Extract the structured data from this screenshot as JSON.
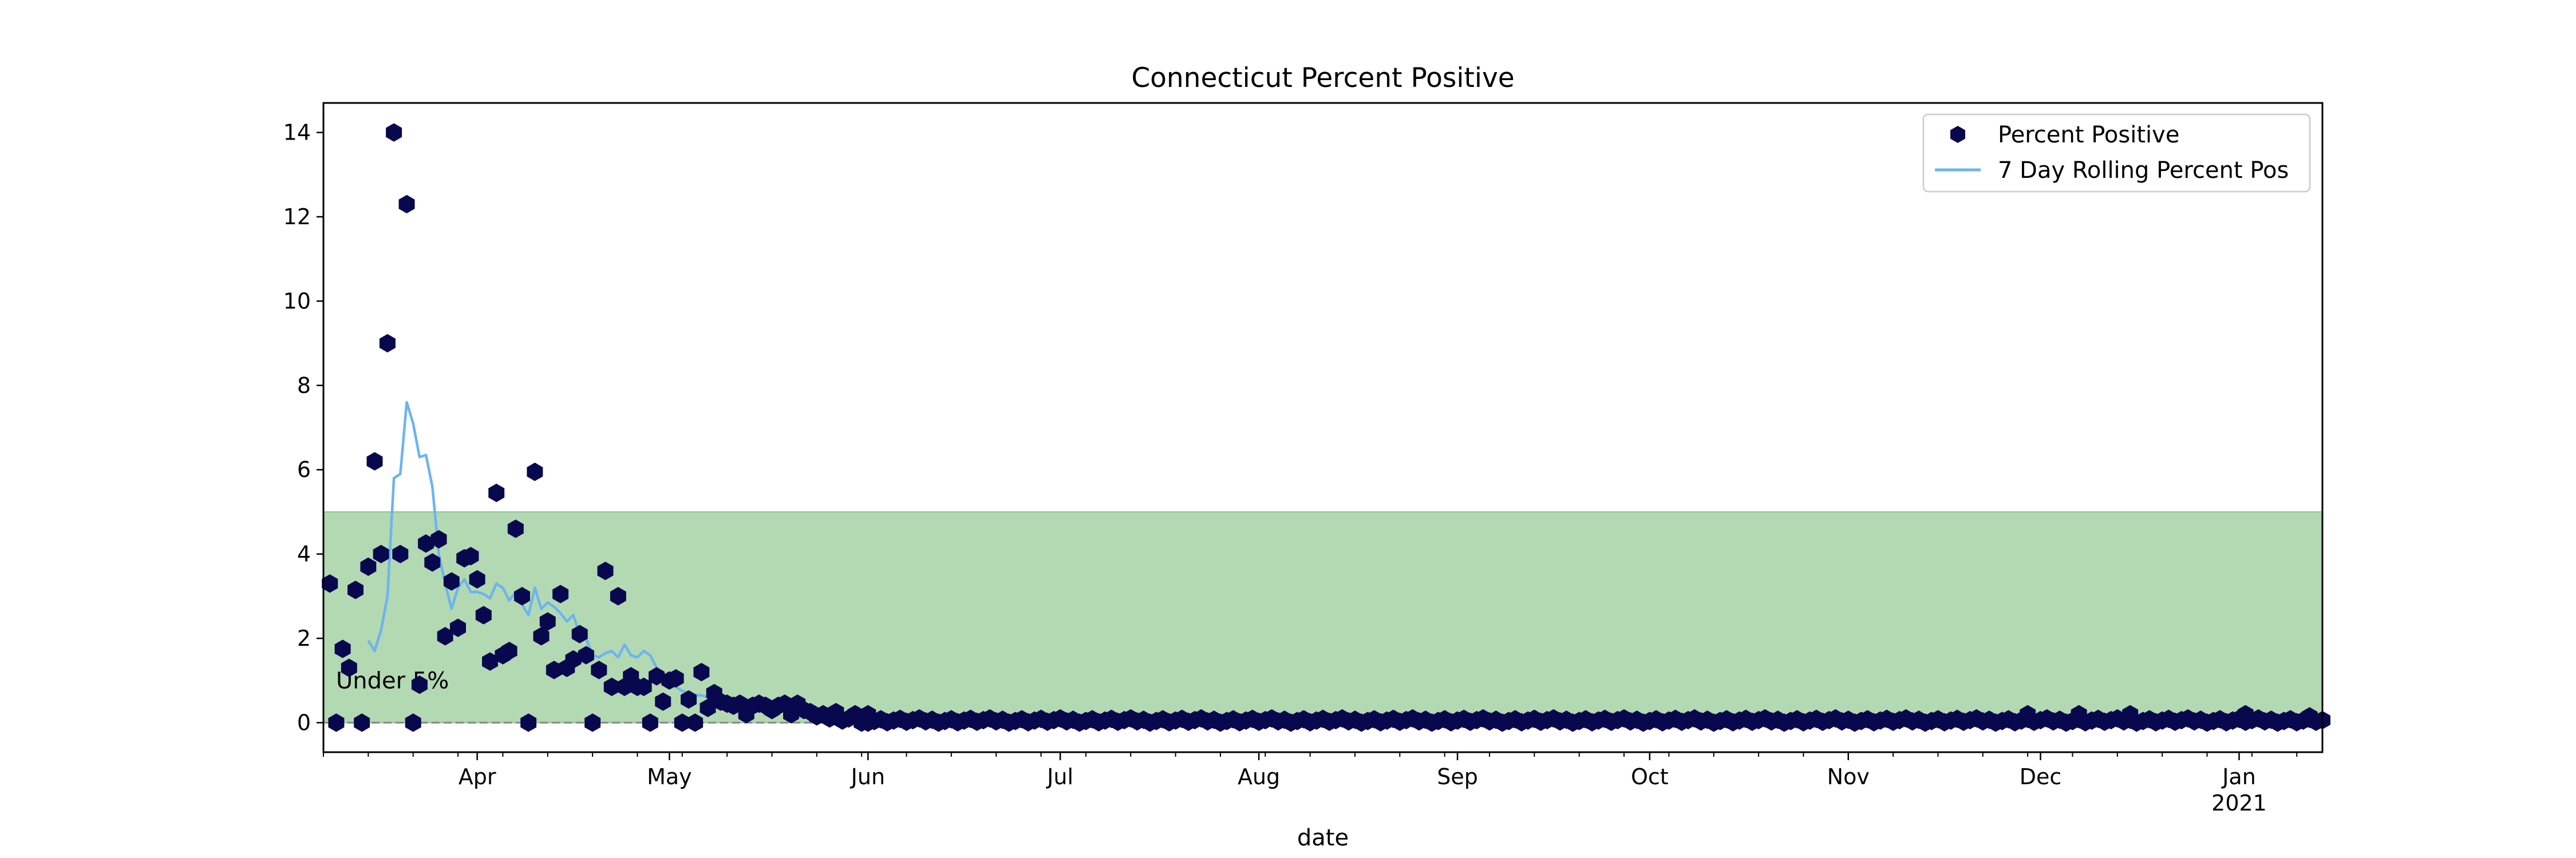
{
  "chart_data": {
    "type": "scatter",
    "title": "Connecticut Percent Positive",
    "xlabel": "date",
    "ylabel": "",
    "x_range": [
      "2020-03-08",
      "2021-01-14"
    ],
    "ylim": [
      -0.7,
      14.7
    ],
    "y_ticks": [
      0,
      2,
      4,
      6,
      8,
      10,
      12,
      14
    ],
    "x_ticks": [
      {
        "date": "2020-04-01",
        "label": "Apr"
      },
      {
        "date": "2020-05-01",
        "label": "May"
      },
      {
        "date": "2020-06-01",
        "label": "Jun"
      },
      {
        "date": "2020-07-01",
        "label": "Jul"
      },
      {
        "date": "2020-08-01",
        "label": "Aug"
      },
      {
        "date": "2020-09-01",
        "label": "Sep"
      },
      {
        "date": "2020-10-01",
        "label": "Oct"
      },
      {
        "date": "2020-11-01",
        "label": "Nov"
      },
      {
        "date": "2020-12-01",
        "label": "Dec"
      },
      {
        "date": "2021-01-01",
        "label": "Jan",
        "sublabel": "2021"
      }
    ],
    "legend_position": "top-right",
    "grid": false,
    "threshold_band": {
      "y_from": 0,
      "y_to": 5,
      "label": "Under 5%",
      "color": "#b2d9b2",
      "border": "#8fc48f"
    },
    "baseline": {
      "y": 0,
      "style": "dashed",
      "color": "#888888"
    },
    "series": [
      {
        "name": "Percent Positive",
        "kind": "markers",
        "color": "#08084f",
        "points": [
          [
            "2020-03-09",
            3.3
          ],
          [
            "2020-03-10",
            0.0
          ],
          [
            "2020-03-11",
            1.75
          ],
          [
            "2020-03-12",
            1.3
          ],
          [
            "2020-03-13",
            3.15
          ],
          [
            "2020-03-14",
            0.0
          ],
          [
            "2020-03-15",
            3.7
          ],
          [
            "2020-03-16",
            6.2
          ],
          [
            "2020-03-17",
            4.0
          ],
          [
            "2020-03-18",
            9.0
          ],
          [
            "2020-03-19",
            14.0
          ],
          [
            "2020-03-20",
            4.0
          ],
          [
            "2020-03-21",
            12.3
          ],
          [
            "2020-03-22",
            0.0
          ],
          [
            "2020-03-23",
            0.9
          ],
          [
            "2020-03-24",
            4.25
          ],
          [
            "2020-03-25",
            3.8
          ],
          [
            "2020-03-26",
            4.35
          ],
          [
            "2020-03-27",
            2.05
          ],
          [
            "2020-03-28",
            3.35
          ],
          [
            "2020-03-29",
            2.25
          ],
          [
            "2020-03-30",
            3.9
          ],
          [
            "2020-03-31",
            3.95
          ],
          [
            "2020-04-01",
            3.4
          ],
          [
            "2020-04-02",
            2.55
          ],
          [
            "2020-04-03",
            1.45
          ],
          [
            "2020-04-04",
            5.45
          ],
          [
            "2020-04-05",
            1.6
          ],
          [
            "2020-04-06",
            1.7
          ],
          [
            "2020-04-07",
            4.6
          ],
          [
            "2020-04-08",
            3.0
          ],
          [
            "2020-04-09",
            0.0
          ],
          [
            "2020-04-10",
            5.95
          ],
          [
            "2020-04-11",
            2.05
          ],
          [
            "2020-04-12",
            2.4
          ],
          [
            "2020-04-13",
            1.25
          ],
          [
            "2020-04-14",
            3.05
          ],
          [
            "2020-04-15",
            1.3
          ],
          [
            "2020-04-16",
            1.5
          ],
          [
            "2020-04-17",
            2.1
          ],
          [
            "2020-04-18",
            1.6
          ],
          [
            "2020-04-19",
            0.0
          ],
          [
            "2020-04-20",
            1.25
          ],
          [
            "2020-04-21",
            3.6
          ],
          [
            "2020-04-22",
            0.85
          ],
          [
            "2020-04-23",
            3.0
          ],
          [
            "2020-04-24",
            0.85
          ],
          [
            "2020-04-25",
            1.1
          ],
          [
            "2020-04-26",
            0.85
          ],
          [
            "2020-04-27",
            0.85
          ],
          [
            "2020-04-28",
            0.0
          ],
          [
            "2020-04-29",
            1.1
          ],
          [
            "2020-04-30",
            0.5
          ],
          [
            "2020-05-01",
            1.0
          ],
          [
            "2020-05-02",
            1.05
          ],
          [
            "2020-05-03",
            0.0
          ],
          [
            "2020-05-04",
            0.55
          ],
          [
            "2020-05-05",
            0.0
          ],
          [
            "2020-05-06",
            1.2
          ],
          [
            "2020-05-07",
            0.35
          ],
          [
            "2020-05-08",
            0.7
          ],
          [
            "2020-05-09",
            0.5
          ],
          [
            "2020-05-10",
            0.45
          ],
          [
            "2020-05-11",
            0.4
          ],
          [
            "2020-05-12",
            0.45
          ],
          [
            "2020-05-13",
            0.2
          ],
          [
            "2020-05-14",
            0.4
          ],
          [
            "2020-05-15",
            0.45
          ],
          [
            "2020-05-16",
            0.4
          ],
          [
            "2020-05-17",
            0.3
          ],
          [
            "2020-05-18",
            0.4
          ],
          [
            "2020-05-19",
            0.45
          ],
          [
            "2020-05-20",
            0.2
          ],
          [
            "2020-05-21",
            0.45
          ],
          [
            "2020-05-22",
            0.3
          ],
          [
            "2020-05-23",
            0.25
          ],
          [
            "2020-05-24",
            0.15
          ],
          [
            "2020-05-25",
            0.2
          ],
          [
            "2020-05-26",
            0.1
          ],
          [
            "2020-05-27",
            0.25
          ],
          [
            "2020-05-28",
            0.05
          ],
          [
            "2020-05-29",
            0.1
          ],
          [
            "2020-05-30",
            0.2
          ],
          [
            "2020-05-31",
            0.0
          ]
        ],
        "tail": {
          "from": "2020-06-01",
          "to": "2021-01-14",
          "base": 0.05,
          "amplitude": 0.1
        },
        "tail_spikes": [
          [
            "2020-06-01",
            0.2
          ],
          [
            "2020-11-29",
            0.2
          ],
          [
            "2020-12-07",
            0.2
          ],
          [
            "2020-12-15",
            0.2
          ],
          [
            "2021-01-02",
            0.2
          ],
          [
            "2021-01-12",
            0.15
          ]
        ]
      },
      {
        "name": "7 Day Rolling Percent Pos",
        "kind": "line",
        "color": "#6cb4ee",
        "points": [
          [
            "2020-03-15",
            1.95
          ],
          [
            "2020-03-16",
            1.7
          ],
          [
            "2020-03-17",
            2.2
          ],
          [
            "2020-03-18",
            3.0
          ],
          [
            "2020-03-19",
            5.8
          ],
          [
            "2020-03-20",
            5.9
          ],
          [
            "2020-03-21",
            7.6
          ],
          [
            "2020-03-22",
            7.1
          ],
          [
            "2020-03-23",
            6.3
          ],
          [
            "2020-03-24",
            6.35
          ],
          [
            "2020-03-25",
            5.6
          ],
          [
            "2020-03-26",
            4.0
          ],
          [
            "2020-03-27",
            3.3
          ],
          [
            "2020-03-28",
            2.7
          ],
          [
            "2020-03-29",
            3.2
          ],
          [
            "2020-03-30",
            3.4
          ],
          [
            "2020-03-31",
            3.1
          ],
          [
            "2020-04-01",
            3.1
          ],
          [
            "2020-04-02",
            3.05
          ],
          [
            "2020-04-03",
            2.95
          ],
          [
            "2020-04-04",
            3.3
          ],
          [
            "2020-04-05",
            3.2
          ],
          [
            "2020-04-06",
            2.9
          ],
          [
            "2020-04-07",
            3.1
          ],
          [
            "2020-04-08",
            2.8
          ],
          [
            "2020-04-09",
            2.55
          ],
          [
            "2020-04-10",
            3.2
          ],
          [
            "2020-04-11",
            2.7
          ],
          [
            "2020-04-12",
            2.85
          ],
          [
            "2020-04-13",
            2.75
          ],
          [
            "2020-04-14",
            2.6
          ],
          [
            "2020-04-15",
            2.4
          ],
          [
            "2020-04-16",
            2.55
          ],
          [
            "2020-04-17",
            2.1
          ],
          [
            "2020-04-18",
            2.0
          ],
          [
            "2020-04-19",
            1.6
          ],
          [
            "2020-04-20",
            1.55
          ],
          [
            "2020-04-21",
            1.65
          ],
          [
            "2020-04-22",
            1.7
          ],
          [
            "2020-04-23",
            1.55
          ],
          [
            "2020-04-24",
            1.85
          ],
          [
            "2020-04-25",
            1.6
          ],
          [
            "2020-04-26",
            1.55
          ],
          [
            "2020-04-27",
            1.7
          ],
          [
            "2020-04-28",
            1.6
          ],
          [
            "2020-04-29",
            1.3
          ],
          [
            "2020-04-30",
            1.0
          ],
          [
            "2020-05-01",
            0.9
          ],
          [
            "2020-05-02",
            0.85
          ],
          [
            "2020-05-03",
            0.75
          ],
          [
            "2020-05-04",
            0.7
          ],
          [
            "2020-05-05",
            0.65
          ],
          [
            "2020-05-06",
            0.65
          ],
          [
            "2020-05-07",
            0.6
          ],
          [
            "2020-05-08",
            0.5
          ],
          [
            "2020-05-09",
            0.5
          ],
          [
            "2020-05-10",
            0.45
          ],
          [
            "2020-05-11",
            0.45
          ],
          [
            "2020-05-12",
            0.4
          ],
          [
            "2020-05-13",
            0.4
          ],
          [
            "2020-05-14",
            0.38
          ],
          [
            "2020-05-15",
            0.35
          ],
          [
            "2020-05-16",
            0.35
          ],
          [
            "2020-05-17",
            0.32
          ],
          [
            "2020-05-18",
            0.3
          ],
          [
            "2020-05-19",
            0.28
          ],
          [
            "2020-05-20",
            0.25
          ],
          [
            "2020-05-21",
            0.22
          ],
          [
            "2020-05-22",
            0.2
          ],
          [
            "2020-05-23",
            0.18
          ],
          [
            "2020-05-24",
            0.15
          ],
          [
            "2020-05-25",
            0.12
          ],
          [
            "2020-05-26",
            0.1
          ],
          [
            "2020-05-27",
            0.08
          ],
          [
            "2020-05-28",
            0.06
          ],
          [
            "2020-05-29",
            0.05
          ],
          [
            "2020-05-30",
            0.04
          ],
          [
            "2020-05-31",
            0.03
          ],
          [
            "2020-06-01",
            0.03
          ],
          [
            "2020-07-01",
            0.02
          ],
          [
            "2020-08-01",
            0.02
          ],
          [
            "2020-09-01",
            0.02
          ],
          [
            "2020-10-01",
            0.03
          ],
          [
            "2020-11-01",
            0.04
          ],
          [
            "2020-12-01",
            0.06
          ],
          [
            "2021-01-01",
            0.07
          ],
          [
            "2021-01-14",
            0.06
          ]
        ]
      }
    ]
  }
}
